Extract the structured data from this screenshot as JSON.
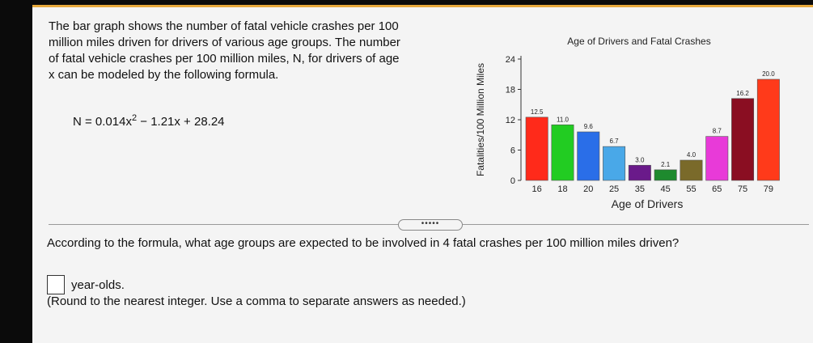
{
  "problem": {
    "lines": [
      "The bar graph shows the number of fatal vehicle crashes per 100",
      "million miles driven for drivers of various age groups. The number",
      "of fatal vehicle crashes per 100 million miles, N, for drivers of age",
      "x can be modeled by the following formula."
    ],
    "formula_left": "N = 0.014x",
    "formula_exp": "2",
    "formula_right": " − 1.21x + 28.24"
  },
  "more_button": "•••••",
  "question": {
    "text": "According to the formula, what age groups are expected to be involved in 4 fatal crashes per 100 million miles driven?",
    "answer_suffix": "year-olds.",
    "hint": "(Round to the nearest integer. Use a comma to separate answers as needed.)"
  },
  "chart_data": {
    "type": "bar",
    "title": "Age of Drivers and Fatal Crashes",
    "xlabel": "Age of Drivers",
    "ylabel": "Fatalities/100 Million Miles",
    "categories": [
      "16",
      "18",
      "20",
      "25",
      "35",
      "45",
      "55",
      "65",
      "75",
      "79"
    ],
    "values": [
      12.5,
      11.0,
      9.6,
      6.7,
      3.0,
      2.1,
      4.0,
      8.7,
      16.2,
      20.0
    ],
    "value_labels": [
      "12.5",
      "11.0",
      "9.6",
      "6.7",
      "3.0",
      "2.1",
      "4.0",
      "8.7",
      "16.2",
      "20.0"
    ],
    "colors": [
      "#ff2a1a",
      "#22cc22",
      "#2a6ee8",
      "#49a8e8",
      "#6a1a8a",
      "#1e8a2e",
      "#7a6a2a",
      "#e83ad8",
      "#8a0e22",
      "#ff3a1a"
    ],
    "yticks": [
      0,
      6,
      12,
      18,
      24
    ],
    "ylim": [
      0,
      24
    ],
    "grid": false,
    "legend": "none"
  }
}
